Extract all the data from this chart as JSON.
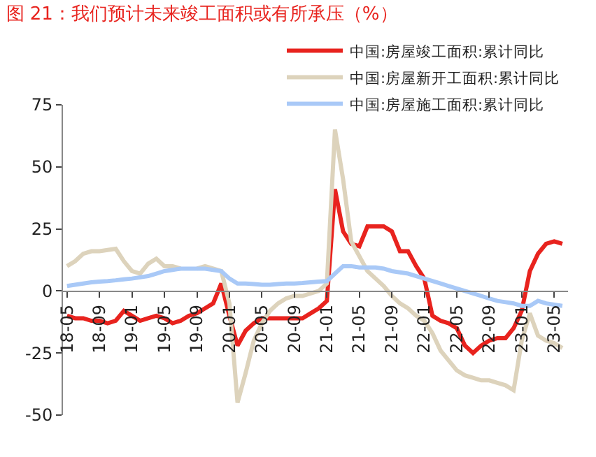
{
  "chart_data": {
    "type": "line",
    "title": "图 21：我们预计未来竣工面积或有所承压（%）",
    "categories": [
      "18-05",
      null,
      null,
      null,
      "18-09",
      null,
      null,
      null,
      "19-01",
      null,
      null,
      null,
      "19-05",
      null,
      null,
      null,
      "19-09",
      null,
      null,
      null,
      "20-01",
      null,
      null,
      null,
      "20-05",
      null,
      null,
      null,
      "20-09",
      null,
      null,
      null,
      "21-01",
      null,
      null,
      null,
      "21-05",
      null,
      null,
      null,
      "21-09",
      null,
      null,
      null,
      "22-01",
      null,
      null,
      null,
      "22-05",
      null,
      null,
      null,
      "22-09",
      null,
      null,
      null,
      "23-01",
      null,
      null,
      null,
      "23-05",
      null
    ],
    "series": [
      {
        "name": "中国:房屋竣工面积:累计同比",
        "color": "#e8231e",
        "values": [
          -10,
          -11,
          -11,
          -12,
          -12,
          -13,
          -12,
          -8,
          -10,
          -12,
          -11,
          -10,
          -11,
          -13,
          -12,
          -10,
          -9,
          -7,
          -5,
          3,
          -10,
          -22,
          -16,
          -13,
          -11,
          -11,
          -11,
          -11,
          -11,
          -11,
          -9,
          -7,
          -4,
          41,
          24,
          19,
          18,
          26,
          26,
          26,
          24,
          16,
          16,
          10,
          5,
          -10,
          -12,
          -13,
          -15,
          -22,
          -25,
          -22,
          -20,
          -19,
          -19,
          -15,
          -8,
          8,
          15,
          19,
          20,
          19
        ]
      },
      {
        "name": "中国:房屋新开工面积:累计同比",
        "color": "#ddd3bc",
        "values": [
          10,
          12,
          15,
          16,
          16,
          16.5,
          17,
          12,
          8,
          7,
          11,
          13,
          10,
          10,
          9,
          null,
          9,
          10,
          9,
          8,
          -5,
          -45,
          -33,
          -20,
          -13,
          -8,
          -5,
          -3,
          -2,
          -2,
          -1,
          0,
          3,
          65,
          45,
          20,
          14,
          8,
          5,
          2,
          -2,
          -5,
          -7,
          -10,
          -12,
          -17,
          -24,
          -28,
          -32,
          -34,
          -35,
          -36,
          -36,
          -37,
          -38,
          -40,
          -20,
          -9,
          -18,
          -20,
          -21,
          -23
        ]
      },
      {
        "name": "中国:房屋施工面积:累计同比",
        "color": "#a9c9f7",
        "values": [
          2,
          2.5,
          3,
          3.5,
          3.8,
          4,
          4.3,
          4.7,
          5,
          5.5,
          6,
          7,
          8,
          8.5,
          9,
          9,
          9,
          9,
          8.5,
          8,
          5,
          3,
          3,
          2.8,
          2.5,
          2.5,
          2.8,
          3,
          3,
          3.2,
          3.5,
          3.8,
          4,
          7,
          10,
          10,
          9.5,
          9.5,
          9.5,
          9,
          8,
          7.5,
          7,
          6,
          5,
          4,
          3,
          2,
          1,
          0,
          -1,
          -2,
          -3,
          -4,
          -4.5,
          -5,
          -6,
          -6,
          -4,
          -5,
          -5.5,
          -6
        ]
      }
    ],
    "ylim": [
      -50,
      75
    ],
    "yticks": [
      -50,
      -25,
      0,
      25,
      50,
      75
    ],
    "grid": false,
    "legend": "top right",
    "line_style": "solid",
    "marker": "none"
  }
}
